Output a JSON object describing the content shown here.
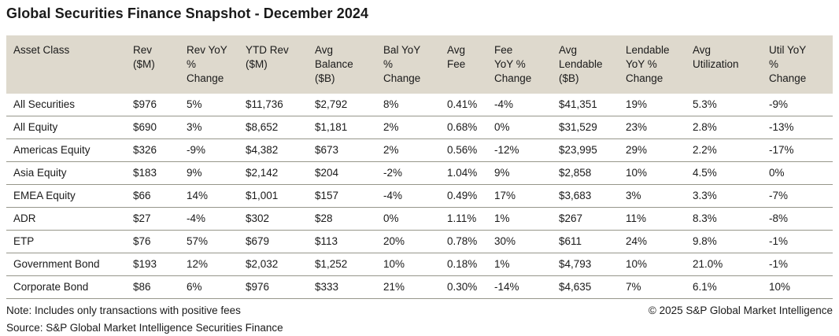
{
  "title": "Global Securities Finance Snapshot - December 2024",
  "table": {
    "columns": [
      "Asset Class",
      "Rev\n($M)",
      "Rev YoY\n%\nChange",
      "YTD Rev\n($M)",
      "Avg\nBalance\n($B)",
      "Bal YoY\n%\nChange",
      "Avg\nFee",
      "Fee\nYoY %\nChange",
      "Avg\nLendable\n($B)",
      "Lendable\nYoY %\nChange",
      "Avg\nUtilization",
      "Util YoY\n%\nChange"
    ],
    "rows": [
      [
        "All Securities",
        "$976",
        "5%",
        "$11,736",
        "$2,792",
        "8%",
        "0.41%",
        "-4%",
        "$41,351",
        "19%",
        "5.3%",
        "-9%"
      ],
      [
        "All Equity",
        "$690",
        "3%",
        "$8,652",
        "$1,181",
        "2%",
        "0.68%",
        "0%",
        "$31,529",
        "23%",
        "2.8%",
        "-13%"
      ],
      [
        "Americas Equity",
        "$326",
        "-9%",
        "$4,382",
        "$673",
        "2%",
        "0.56%",
        "-12%",
        "$23,995",
        "29%",
        "2.2%",
        "-17%"
      ],
      [
        "Asia Equity",
        "$183",
        "9%",
        "$2,142",
        "$204",
        "-2%",
        "1.04%",
        "9%",
        "$2,858",
        "10%",
        "4.5%",
        "0%"
      ],
      [
        "EMEA Equity",
        "$66",
        "14%",
        "$1,001",
        "$157",
        "-4%",
        "0.49%",
        "17%",
        "$3,683",
        "3%",
        "3.3%",
        "-7%"
      ],
      [
        "ADR",
        "$27",
        "-4%",
        "$302",
        "$28",
        "0%",
        "1.11%",
        "1%",
        "$267",
        "11%",
        "8.3%",
        "-8%"
      ],
      [
        "ETP",
        "$76",
        "57%",
        "$679",
        "$113",
        "20%",
        "0.78%",
        "30%",
        "$611",
        "24%",
        "9.8%",
        "-1%"
      ],
      [
        "Government Bond",
        "$193",
        "12%",
        "$2,032",
        "$1,252",
        "10%",
        "0.18%",
        "1%",
        "$4,793",
        "10%",
        "21.0%",
        "-1%"
      ],
      [
        "Corporate Bond",
        "$86",
        "6%",
        "$976",
        "$333",
        "21%",
        "0.30%",
        "-14%",
        "$4,635",
        "7%",
        "6.1%",
        "10%"
      ]
    ]
  },
  "footer": {
    "note": "Note: Includes only transactions with positive fees",
    "source": "Source: S&P Global Market Intelligence Securities Finance",
    "copyright": "© 2025 S&P Global Market Intelligence"
  },
  "colors": {
    "header_bg": "#ded9cd",
    "row_border": "#96968a",
    "text": "#1a1a1a",
    "background": "#ffffff"
  }
}
